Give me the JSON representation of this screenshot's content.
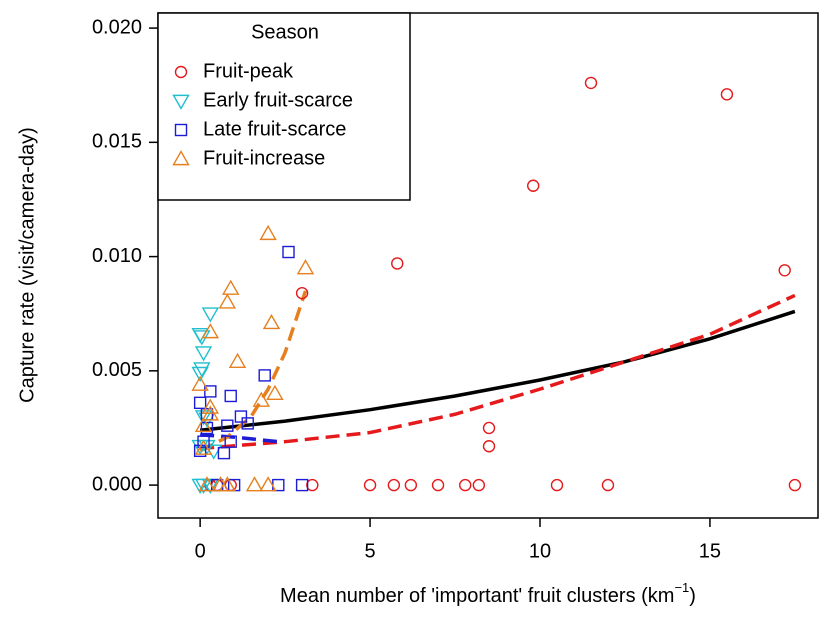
{
  "chart_data": {
    "type": "scatter",
    "y_label": "Capture rate (visit/camera-day)",
    "x_label": [
      "Mean number of 'important' fruit clusters (km",
      "−1",
      ")"
    ],
    "legend_title": "Season",
    "legend": "top-left",
    "xlim": [
      -1.24,
      18.18
    ],
    "ylim": [
      -0.00144,
      0.02066
    ],
    "xticks": [
      0,
      5,
      10,
      15
    ],
    "yticks": [
      {
        "value": 0,
        "label": "0.000"
      },
      {
        "value": 0.005,
        "label": "0.005"
      },
      {
        "value": 0.01,
        "label": "0.010"
      },
      {
        "value": 0.015,
        "label": "0.015"
      },
      {
        "value": 0.02,
        "label": "0.020"
      }
    ],
    "series": [
      {
        "name": "Fruit-peak",
        "color": "#e41a1c",
        "marker": "circle",
        "x": [
          11.5,
          15.5,
          9.8,
          5.8,
          17.2,
          3.0,
          8.5,
          8.5,
          0.3,
          0.5,
          0.9,
          3.3,
          5.0,
          5.7,
          6.2,
          7.0,
          7.8,
          8.2,
          10.5,
          12.0,
          17.5
        ],
        "values": [
          0.0176,
          0.0171,
          0.0131,
          0.0097,
          0.0094,
          0.0084,
          0.0025,
          0.0017,
          0,
          0,
          0,
          0,
          0,
          0,
          0,
          0,
          0,
          0,
          0,
          0,
          0
        ]
      },
      {
        "name": "Early fruit-scarce",
        "color": "#1fbfcf",
        "marker": "triangle-down",
        "x": [
          0,
          0.05,
          0.1,
          0.3,
          0.05,
          0,
          0.1,
          0.2,
          0.2,
          0.4,
          0,
          0,
          0.1,
          0.3
        ],
        "values": [
          0.0066,
          0.0065,
          0.0058,
          0.0075,
          0.0051,
          0.0049,
          0.003,
          0.0029,
          0.0017,
          0.0015,
          0.0017,
          0,
          0,
          0
        ]
      },
      {
        "name": "Late fruit-scarce",
        "color": "#1c1cd6",
        "marker": "square",
        "x": [
          2.6,
          1.9,
          0.3,
          0,
          0.9,
          1.2,
          1.4,
          0.8,
          0.9,
          0.2,
          0.1,
          0,
          0.7,
          0.2,
          0.5,
          1.0,
          2.3,
          3.0
        ],
        "values": [
          0.0102,
          0.0048,
          0.0041,
          0.0036,
          0.0039,
          0.003,
          0.0027,
          0.0026,
          0.0019,
          0.0025,
          0.0019,
          0.0015,
          0.0014,
          0.0031,
          0,
          0,
          0,
          0
        ]
      },
      {
        "name": "Fruit-increase",
        "color": "#e6801f",
        "marker": "triangle-up",
        "x": [
          2.0,
          3.1,
          0.9,
          0.8,
          2.1,
          0.3,
          1.1,
          0,
          2.2,
          1.8,
          0.3,
          0.3,
          0.1,
          0.1,
          0.2,
          0.6,
          0.8,
          1.6,
          2.0
        ],
        "values": [
          0.011,
          0.0095,
          0.0086,
          0.008,
          0.0071,
          0.0067,
          0.0054,
          0.0044,
          0.004,
          0.0037,
          0.0034,
          0.0031,
          0.0026,
          0.0016,
          0,
          0,
          0,
          0,
          0
        ]
      }
    ],
    "fits": [
      {
        "color": "#000000",
        "dash": false,
        "x": [
          0,
          2.5,
          5,
          7.5,
          10,
          12.5,
          15,
          17.5
        ],
        "y": [
          0.0024,
          0.0028,
          0.0033,
          0.0039,
          0.0046,
          0.0054,
          0.0064,
          0.0076
        ]
      },
      {
        "color": "#e41a1c",
        "dash": true,
        "x": [
          0,
          2.5,
          5,
          7.5,
          10,
          12.5,
          15,
          17.5
        ],
        "y": [
          0.0016,
          0.0019,
          0.0023,
          0.0031,
          0.0042,
          0.0054,
          0.0066,
          0.0083
        ]
      },
      {
        "color": "#1c1cd6",
        "dash": true,
        "x": [
          0,
          1,
          2.3
        ],
        "y": [
          0.0022,
          0.0021,
          0.0019
        ]
      },
      {
        "color": "#e6801f",
        "dash": true,
        "x": [
          0,
          0.8,
          1.5,
          2.0,
          2.5,
          3.1
        ],
        "y": [
          0.0015,
          0.0021,
          0.003,
          0.0042,
          0.0058,
          0.0085
        ]
      }
    ]
  }
}
